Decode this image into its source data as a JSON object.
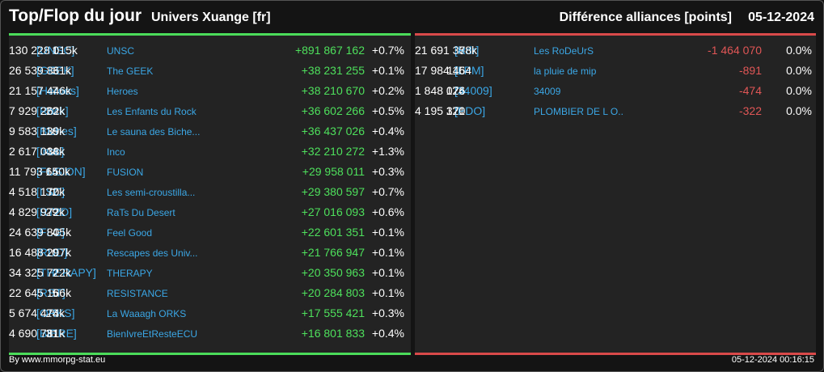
{
  "header": {
    "title": "Top/Flop du jour",
    "universe": "Univers Xuange [fr]",
    "subtitle": "Différence alliances [points]",
    "date": "05-12-2024"
  },
  "colors": {
    "top_accent": "#4bdc5a",
    "flop_accent": "#d94a4a",
    "link": "#3ba7e6"
  },
  "top": [
    {
      "rank": "1",
      "tag": "[UNSC]",
      "name": "UNSC",
      "points": "130 228 015k",
      "delta": "+891 867 162",
      "pct": "+0.7%"
    },
    {
      "rank": "3",
      "tag": "[GEEK]",
      "name": "The GEEK",
      "points": "26 539 861k",
      "delta": "+38 231 255",
      "pct": "+0.1%"
    },
    {
      "rank": "7",
      "tag": "[Heroes]",
      "name": "Heroes",
      "points": "21 157 446k",
      "delta": "+38 210 670",
      "pct": "+0.2%"
    },
    {
      "rank": "20",
      "tag": "[Rock]",
      "name": "Les Enfants du Rock",
      "points": "7 929 262k",
      "delta": "+36 602 266",
      "pct": "+0.5%"
    },
    {
      "rank": "16",
      "tag": "[Biches]",
      "name": "Le sauna des Biche...",
      "points": "9 583 139k",
      "delta": "+36 437 026",
      "pct": "+0.4%"
    },
    {
      "rank": "44",
      "tag": "[Inco]",
      "name": "Inco",
      "points": "2 617 038k",
      "delta": "+32 210 272",
      "pct": "+1.3%"
    },
    {
      "rank": "14",
      "tag": "[FUSION]",
      "name": "FUSION",
      "points": "11 793 650k",
      "delta": "+29 958 011",
      "pct": "+0.3%"
    },
    {
      "rank": "32",
      "tag": "[LSC]",
      "name": "Les semi-croustilla...",
      "points": "4 518 170k",
      "delta": "+29 380 597",
      "pct": "+0.7%"
    },
    {
      "rank": "29",
      "tag": "[RT2D]",
      "name": "RaTs Du Desert",
      "points": "4 829 972k",
      "delta": "+27 016 093",
      "pct": "+0.6%"
    },
    {
      "rank": "4",
      "tag": "[FLG]",
      "name": "Feel Good",
      "points": "24 639 805k",
      "delta": "+22 601 351",
      "pct": "+0.1%"
    },
    {
      "rank": "10",
      "tag": "[RUD]",
      "name": "Rescapes des Univ...",
      "points": "16 488 297k",
      "delta": "+21 766 947",
      "pct": "+0.1%"
    },
    {
      "rank": "2",
      "tag": "[THERAPY]",
      "name": "THERAPY",
      "points": "34 325 722k",
      "delta": "+20 350 963",
      "pct": "+0.1%"
    },
    {
      "rank": "5",
      "tag": "[RST]",
      "name": "RESISTANCE",
      "points": "22 645 166k",
      "delta": "+20 284 803",
      "pct": "+0.1%"
    },
    {
      "rank": "26",
      "tag": "[ORKS]",
      "name": "La Waaagh ORKS",
      "points": "5 674 474k",
      "delta": "+17 555 421",
      "pct": "+0.3%"
    },
    {
      "rank": "31",
      "tag": "[BIERE]",
      "name": "BienIvreEtResteECU",
      "points": "4 690 781k",
      "delta": "+16 801 833",
      "pct": "+0.4%"
    }
  ],
  "flop": [
    {
      "rank": "6",
      "tag": "[Rdr]",
      "name": "Les RoDeUrS",
      "points": "21 691 378k",
      "delta": "-1 464 070",
      "pct": "0.0%"
    },
    {
      "rank": "115",
      "tag": "[LPM]",
      "name": "la pluie de mip",
      "points": "17 984 464",
      "delta": "-891",
      "pct": "0.0%"
    },
    {
      "rank": "124",
      "tag": "[34009]",
      "name": "34009",
      "points": "1 848 076",
      "delta": "-474",
      "pct": "0.0%"
    },
    {
      "rank": "121",
      "tag": "[PDO]",
      "name": "PLOMBIER DE L O...",
      "points": "4 195 370",
      "delta": "-322",
      "pct": "0.0%"
    }
  ],
  "footer": {
    "credit": "By www.mmorpg-stat.eu",
    "timestamp": "05-12-2024 00:16:15"
  }
}
